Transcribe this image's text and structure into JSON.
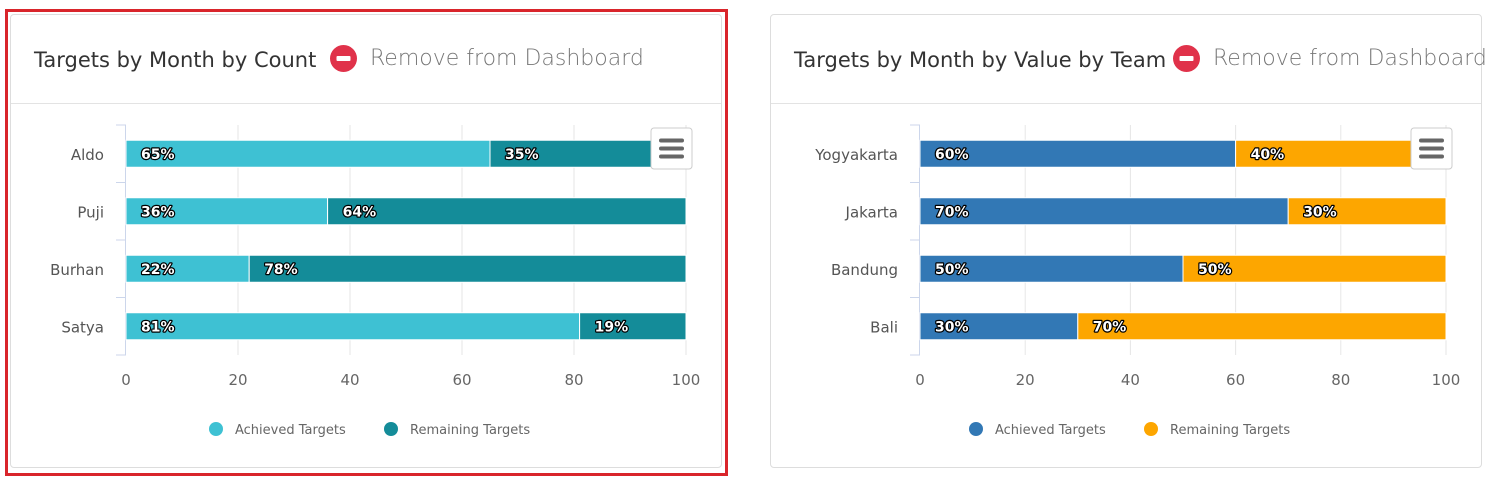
{
  "panels": [
    {
      "title": "Targets by Month by Count",
      "remove_label": "Remove from Dashboard",
      "colors": {
        "achieved": "#3ec1d3",
        "remaining": "#148c99"
      },
      "chart_data": {
        "type": "bar",
        "orientation": "horizontal",
        "stacked": true,
        "categories": [
          "Aldo",
          "Puji",
          "Burhan",
          "Satya"
        ],
        "series": [
          {
            "name": "Achieved Targets",
            "values": [
              65,
              36,
              22,
              81
            ],
            "labels": [
              "65%",
              "36%",
              "22%",
              "81%"
            ]
          },
          {
            "name": "Remaining Targets",
            "values": [
              35,
              64,
              78,
              19
            ],
            "labels": [
              "35%",
              "64%",
              "78%",
              "19%"
            ]
          }
        ],
        "xlim": [
          0,
          100
        ],
        "xticks": [
          "0",
          "20",
          "40",
          "60",
          "80",
          "100"
        ],
        "grid": true,
        "legend": "bottom"
      }
    },
    {
      "title": "Targets by Month by Value by Team",
      "remove_label": "Remove from Dashboard",
      "colors": {
        "achieved": "#3278b5",
        "remaining": "#fda600"
      },
      "chart_data": {
        "type": "bar",
        "orientation": "horizontal",
        "stacked": true,
        "categories": [
          "Yogyakarta",
          "Jakarta",
          "Bandung",
          "Bali"
        ],
        "series": [
          {
            "name": "Achieved Targets",
            "values": [
              60,
              70,
              50,
              30
            ],
            "labels": [
              "60%",
              "70%",
              "50%",
              "30%"
            ]
          },
          {
            "name": "Remaining Targets",
            "values": [
              40,
              30,
              50,
              70
            ],
            "labels": [
              "40%",
              "30%",
              "50%",
              "70%"
            ]
          }
        ],
        "xlim": [
          0,
          100
        ],
        "xticks": [
          "0",
          "20",
          "40",
          "60",
          "80",
          "100"
        ],
        "grid": true,
        "legend": "bottom"
      }
    }
  ]
}
